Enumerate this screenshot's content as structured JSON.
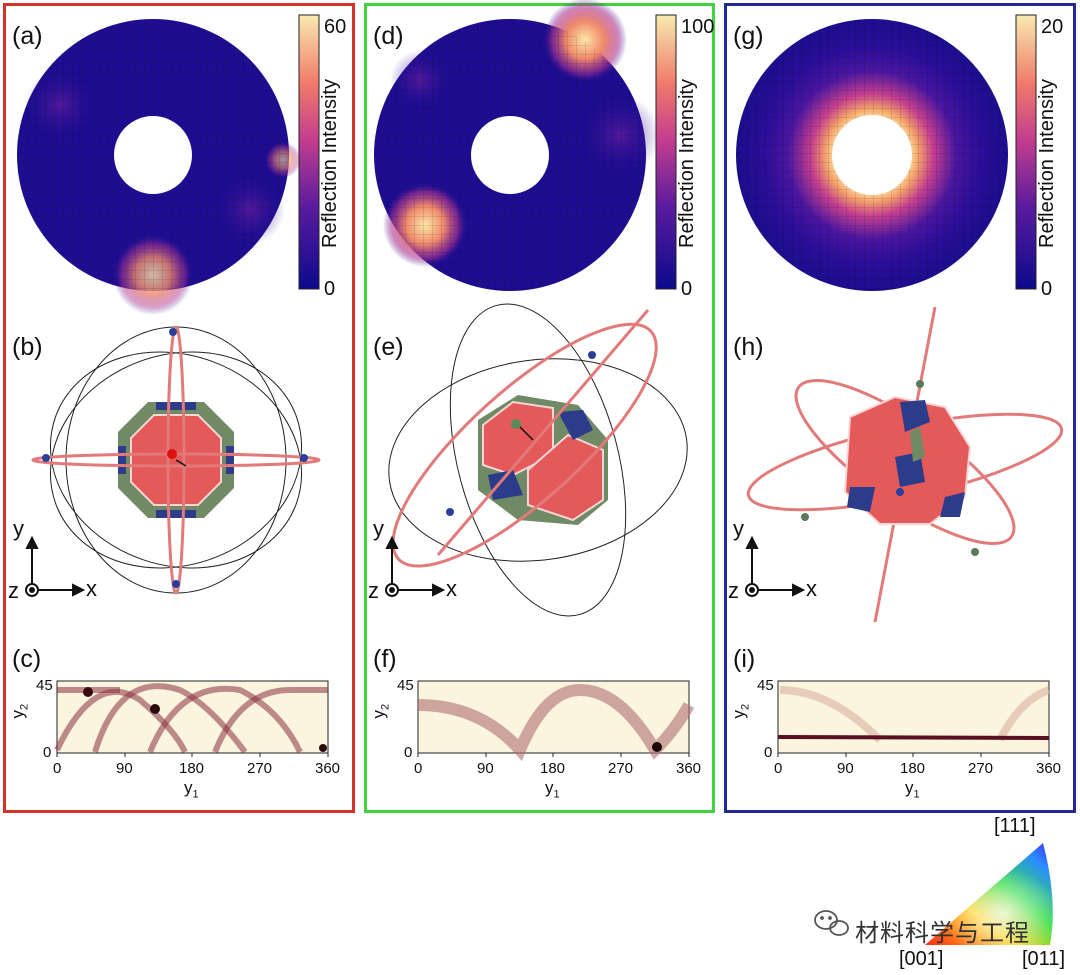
{
  "panels": [
    {
      "id": "a",
      "label": "(a)",
      "cb_max": "60",
      "cb_min": "0",
      "cb_title": "Reflection Intensity"
    },
    {
      "id": "d",
      "label": "(d)",
      "cb_max": "100",
      "cb_min": "0",
      "cb_title": "Reflection Intensity"
    },
    {
      "id": "g",
      "label": "(g)",
      "cb_max": "20",
      "cb_min": "0",
      "cb_title": "Reflection Intensity"
    }
  ],
  "crystal_labels": [
    "(b)",
    "(e)",
    "(h)"
  ],
  "heatmap_labels": [
    "(c)",
    "(f)",
    "(i)"
  ],
  "axes": {
    "y": "y",
    "x": "x",
    "z": "z"
  },
  "heatmap_axes": {
    "y_ticks": [
      "45",
      "0"
    ],
    "x_ticks": [
      "0",
      "90",
      "180",
      "270",
      "360"
    ],
    "xlabel": "y",
    "xlabel_sub": "1",
    "ylabel": "y",
    "ylabel_sub": "2"
  },
  "frame_colors": {
    "left": "#d9302c",
    "middle": "#3ed63a",
    "right": "#23279a"
  },
  "colormap": {
    "low": "#0c0a8c",
    "mid": "#e35f78",
    "high": "#f7e6a8"
  },
  "ipf_key": {
    "top": "[111]",
    "bottom_left": "[001]",
    "bottom_right": "[011]"
  },
  "watermark": "材料科学与工程",
  "icons": {
    "watermark": "wechat-icon"
  }
}
